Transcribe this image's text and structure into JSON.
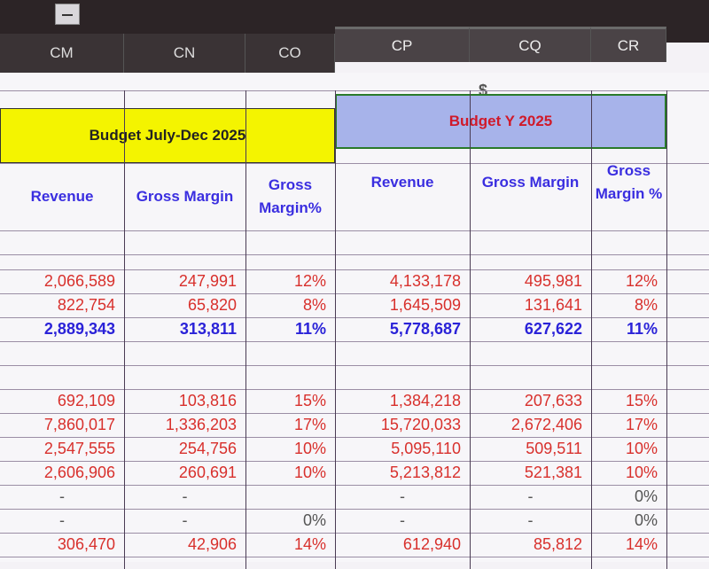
{
  "column_headers": [
    "CM",
    "CN",
    "CO",
    "CP",
    "CQ",
    "CR"
  ],
  "currency_symbol": "$",
  "section_titles": {
    "half_year": "Budget July-Dec 2025",
    "full_year": "Budget Y 2025"
  },
  "subheaders": [
    "Revenue",
    "Gross Margin",
    "Gross Margin%",
    "Revenue",
    "Gross Margin",
    "Gross Margin %"
  ],
  "colors": {
    "half_year_title_bg": "#f4f400",
    "full_year_title_bg": "#a7b3ea",
    "values": "#d8302c",
    "totals": "#2a22d8"
  },
  "rows": [
    {
      "style": "red",
      "cells": [
        "2,066,589",
        "247,991",
        "12%",
        "4,133,178",
        "495,981",
        "12%"
      ]
    },
    {
      "style": "red",
      "cells": [
        "822,754",
        "65,820",
        "8%",
        "1,645,509",
        "131,641",
        "8%"
      ]
    },
    {
      "style": "blue",
      "cells": [
        "2,889,343",
        "313,811",
        "11%",
        "5,778,687",
        "627,622",
        "11%"
      ]
    },
    {
      "style": "empty",
      "cells": [
        "",
        "",
        "",
        "",
        "",
        ""
      ]
    },
    {
      "style": "empty",
      "cells": [
        "",
        "",
        "",
        "",
        "",
        ""
      ]
    },
    {
      "style": "red",
      "cells": [
        "692,109",
        "103,816",
        "15%",
        "1,384,218",
        "207,633",
        "15%"
      ]
    },
    {
      "style": "red",
      "cells": [
        "7,860,017",
        "1,336,203",
        "17%",
        "15,720,033",
        "2,672,406",
        "17%"
      ]
    },
    {
      "style": "red",
      "cells": [
        "2,547,555",
        "254,756",
        "10%",
        "5,095,110",
        "509,511",
        "10%"
      ]
    },
    {
      "style": "red",
      "cells": [
        "2,606,906",
        "260,691",
        "10%",
        "5,213,812",
        "521,381",
        "10%"
      ]
    },
    {
      "style": "gray",
      "cells": [
        "-",
        "-",
        "",
        "-",
        "-",
        "0%"
      ]
    },
    {
      "style": "gray",
      "cells": [
        "-",
        "-",
        "0%",
        "-",
        "-",
        "0%"
      ]
    },
    {
      "style": "red",
      "cells": [
        "306,470",
        "42,906",
        "14%",
        "612,940",
        "85,812",
        "14%"
      ]
    }
  ]
}
